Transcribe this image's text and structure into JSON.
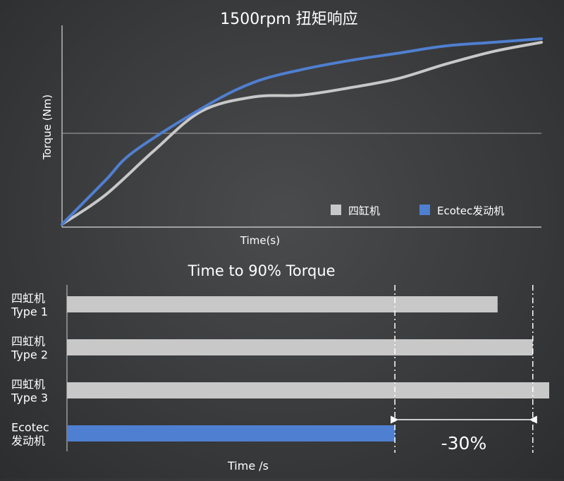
{
  "chart_data": [
    {
      "type": "line",
      "title": "1500rpm 扭矩响应",
      "xlabel": "Time(s)",
      "ylabel": "Torque (Nm)",
      "legend_position": "bottom-right",
      "reference_line_y": 0.5,
      "ylim": [
        0,
        1
      ],
      "xlim": [
        0,
        1
      ],
      "series": [
        {
          "name": "四缸机",
          "color": "#c8c8c8",
          "x": [
            0,
            0.09,
            0.19,
            0.29,
            0.4,
            0.5,
            0.6,
            0.7,
            0.8,
            0.9,
            1.0
          ],
          "y": [
            0,
            0.16,
            0.4,
            0.62,
            0.7,
            0.71,
            0.75,
            0.8,
            0.88,
            0.95,
            1.0
          ]
        },
        {
          "name": "Ecotec发动机",
          "color": "#4f7fd0",
          "x": [
            0,
            0.09,
            0.15,
            0.3,
            0.4,
            0.5,
            0.6,
            0.7,
            0.8,
            0.9,
            1.0
          ],
          "y": [
            0,
            0.24,
            0.4,
            0.65,
            0.78,
            0.85,
            0.9,
            0.94,
            0.98,
            1.0,
            1.02
          ]
        }
      ]
    },
    {
      "type": "bar",
      "orientation": "horizontal",
      "title": "Time to 90% Torque",
      "xlabel": "Time /s",
      "categories": [
        "四虹机\nType 1",
        "四虹机\nType 2",
        "四虹机\nType 3",
        "Ecotec\n发动机"
      ],
      "category_lines": [
        [
          "四虹机",
          "Type 1"
        ],
        [
          "四虹机",
          "Type 2"
        ],
        [
          "四虹机",
          "Type 3"
        ],
        [
          "Ecotec",
          "发动机"
        ]
      ],
      "values": [
        0.893,
        0.966,
        1.0,
        0.68
      ],
      "colors": [
        "#c8c8c8",
        "#c8c8c8",
        "#c8c8c8",
        "#4f7fd0"
      ],
      "xlim": [
        0,
        1
      ],
      "reference_lines_x": [
        0.68,
        0.966
      ],
      "annotation": {
        "label": "-30%",
        "from": 0.68,
        "to": 0.966
      }
    }
  ]
}
